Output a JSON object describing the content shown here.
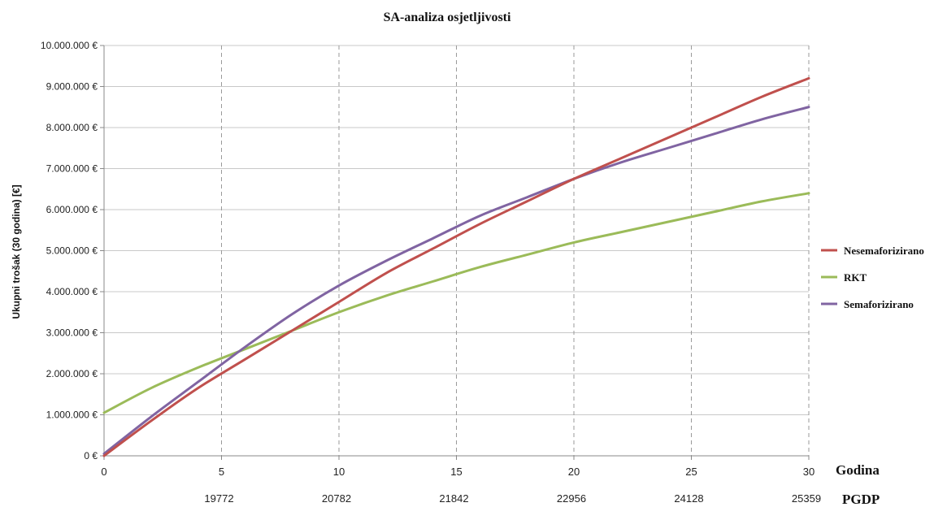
{
  "chart_data": {
    "type": "line",
    "title": "SA-analiza osjetljivosti",
    "ylabel": "Ukupni trošak   (30 godina) [€]",
    "xlabel": "Godina",
    "secondary_xlabel": "PGDP",
    "xlim": [
      0,
      30
    ],
    "ylim": [
      0,
      10000000
    ],
    "x_ticks": [
      "0",
      "5",
      "10",
      "15",
      "20",
      "25",
      "30"
    ],
    "y_ticks": [
      "0 €",
      "1.000.000 €",
      "2.000.000 €",
      "3.000.000 €",
      "4.000.000 €",
      "5.000.000 €",
      "6.000.000 €",
      "7.000.000 €",
      "8.000.000 €",
      "9.000.000 €",
      "10.000.000 €"
    ],
    "pgdp_labels": [
      "19772",
      "20782",
      "21842",
      "22956",
      "24128",
      "25359"
    ],
    "grid": true,
    "legend_position": "right",
    "series": [
      {
        "name": "Nesemaforizirano",
        "color": "#c0504d",
        "x": [
          0,
          2,
          4,
          6,
          8,
          10,
          12,
          14,
          16,
          18,
          20,
          22,
          24,
          26,
          28,
          30
        ],
        "y": [
          0,
          850000,
          1650000,
          2350000,
          3050000,
          3750000,
          4450000,
          5050000,
          5650000,
          6200000,
          6750000,
          7250000,
          7750000,
          8250000,
          8750000,
          9200000
        ]
      },
      {
        "name": "RKT",
        "color": "#9bbb59",
        "x": [
          0,
          2,
          4,
          6,
          8,
          10,
          12,
          14,
          16,
          18,
          20,
          22,
          24,
          26,
          28,
          30
        ],
        "y": [
          1050000,
          1650000,
          2150000,
          2600000,
          3050000,
          3500000,
          3900000,
          4250000,
          4600000,
          4900000,
          5200000,
          5450000,
          5700000,
          5950000,
          6200000,
          6400000
        ]
      },
      {
        "name": "Semaforizirano",
        "color": "#8064a2",
        "x": [
          0,
          2,
          4,
          6,
          8,
          10,
          12,
          14,
          16,
          18,
          20,
          22,
          24,
          26,
          28,
          30
        ],
        "y": [
          50000,
          950000,
          1800000,
          2650000,
          3450000,
          4150000,
          4750000,
          5300000,
          5850000,
          6300000,
          6750000,
          7150000,
          7500000,
          7850000,
          8200000,
          8500000
        ]
      }
    ]
  }
}
